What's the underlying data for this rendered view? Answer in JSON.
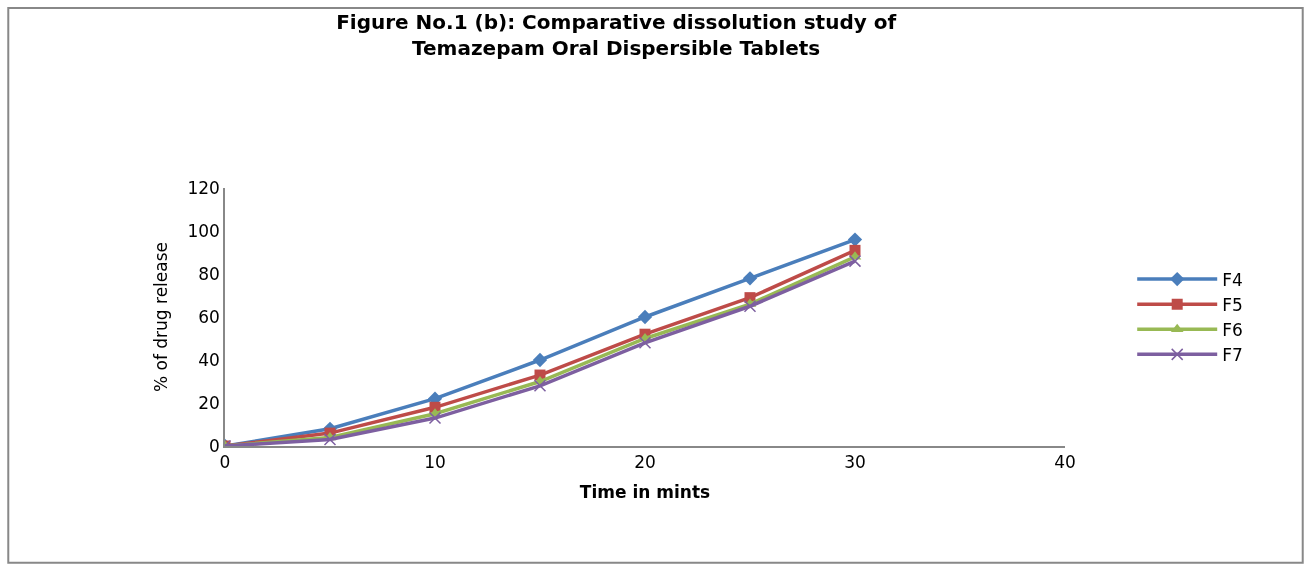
{
  "chart_data": {
    "type": "line",
    "title": "Figure No.1 (b): Comparative dissolution study of\nTemazepam Oral Dispersible Tablets",
    "xlabel": "Time in mints",
    "ylabel": "% of drug release",
    "x": [
      0,
      5,
      10,
      15,
      20,
      25,
      30
    ],
    "series": [
      {
        "name": "F4",
        "color": "#4a7ebb",
        "marker": "diamond",
        "values": [
          0,
          8,
          22,
          40,
          60,
          78,
          96
        ]
      },
      {
        "name": "F5",
        "color": "#be4b48",
        "marker": "square",
        "values": [
          0,
          6,
          18,
          33,
          52,
          69,
          91
        ]
      },
      {
        "name": "F6",
        "color": "#98b954",
        "marker": "triangle",
        "values": [
          0,
          4,
          15,
          30,
          50,
          66,
          88
        ]
      },
      {
        "name": "F7",
        "color": "#7d5fa0",
        "marker": "cross",
        "values": [
          0,
          3,
          13,
          28,
          48,
          65,
          86
        ]
      }
    ],
    "xlim": [
      0,
      40
    ],
    "xticks": [
      0,
      10,
      20,
      30,
      40
    ],
    "ylim": [
      0,
      120
    ],
    "yticks": [
      0,
      20,
      40,
      60,
      80,
      100,
      120
    ],
    "legend": "right",
    "line_style": "solid"
  }
}
